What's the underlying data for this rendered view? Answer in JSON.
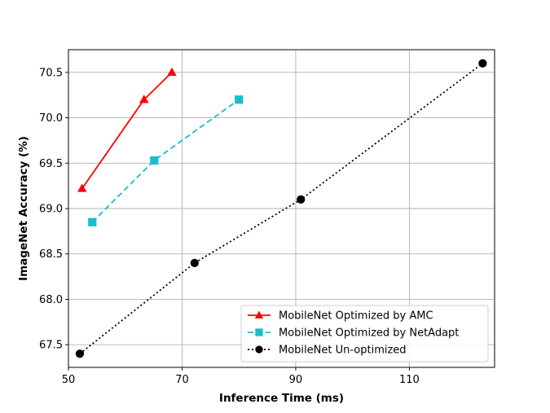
{
  "chart_data": {
    "type": "line",
    "title": "",
    "xlabel": "Inference Time (ms)",
    "ylabel": "ImageNet Accuracy (%)",
    "xlim": [
      50,
      125
    ],
    "ylim": [
      67.25,
      70.75
    ],
    "xticks": [
      50,
      70,
      90,
      110
    ],
    "yticks": [
      67.5,
      68.0,
      68.5,
      69.0,
      69.5,
      70.0,
      70.5
    ],
    "xtick_labels": [
      "50",
      "70",
      "90",
      "110"
    ],
    "ytick_labels": [
      "67.5",
      "68.0",
      "68.5",
      "69.0",
      "69.5",
      "70.0",
      "70.5"
    ],
    "grid": true,
    "legend_position": "lower-right",
    "series": [
      {
        "name": "MobileNet Optimized by AMC",
        "color": "#ff0000",
        "line_style": "solid",
        "marker": "triangle",
        "x": [
          52.4,
          63.3,
          68.2
        ],
        "y": [
          69.22,
          70.2,
          70.5
        ]
      },
      {
        "name": "MobileNet Optimized by NetAdapt",
        "color": "#17becf",
        "line_style": "dashed",
        "marker": "square",
        "x": [
          54.2,
          65.1,
          80.0
        ],
        "y": [
          68.85,
          69.53,
          70.2
        ]
      },
      {
        "name": "MobileNet Un-optimized",
        "color": "#000000",
        "line_style": "dotted",
        "marker": "circle",
        "x": [
          52.0,
          72.2,
          90.9,
          122.9
        ],
        "y": [
          67.4,
          68.4,
          69.1,
          70.6
        ]
      }
    ]
  }
}
